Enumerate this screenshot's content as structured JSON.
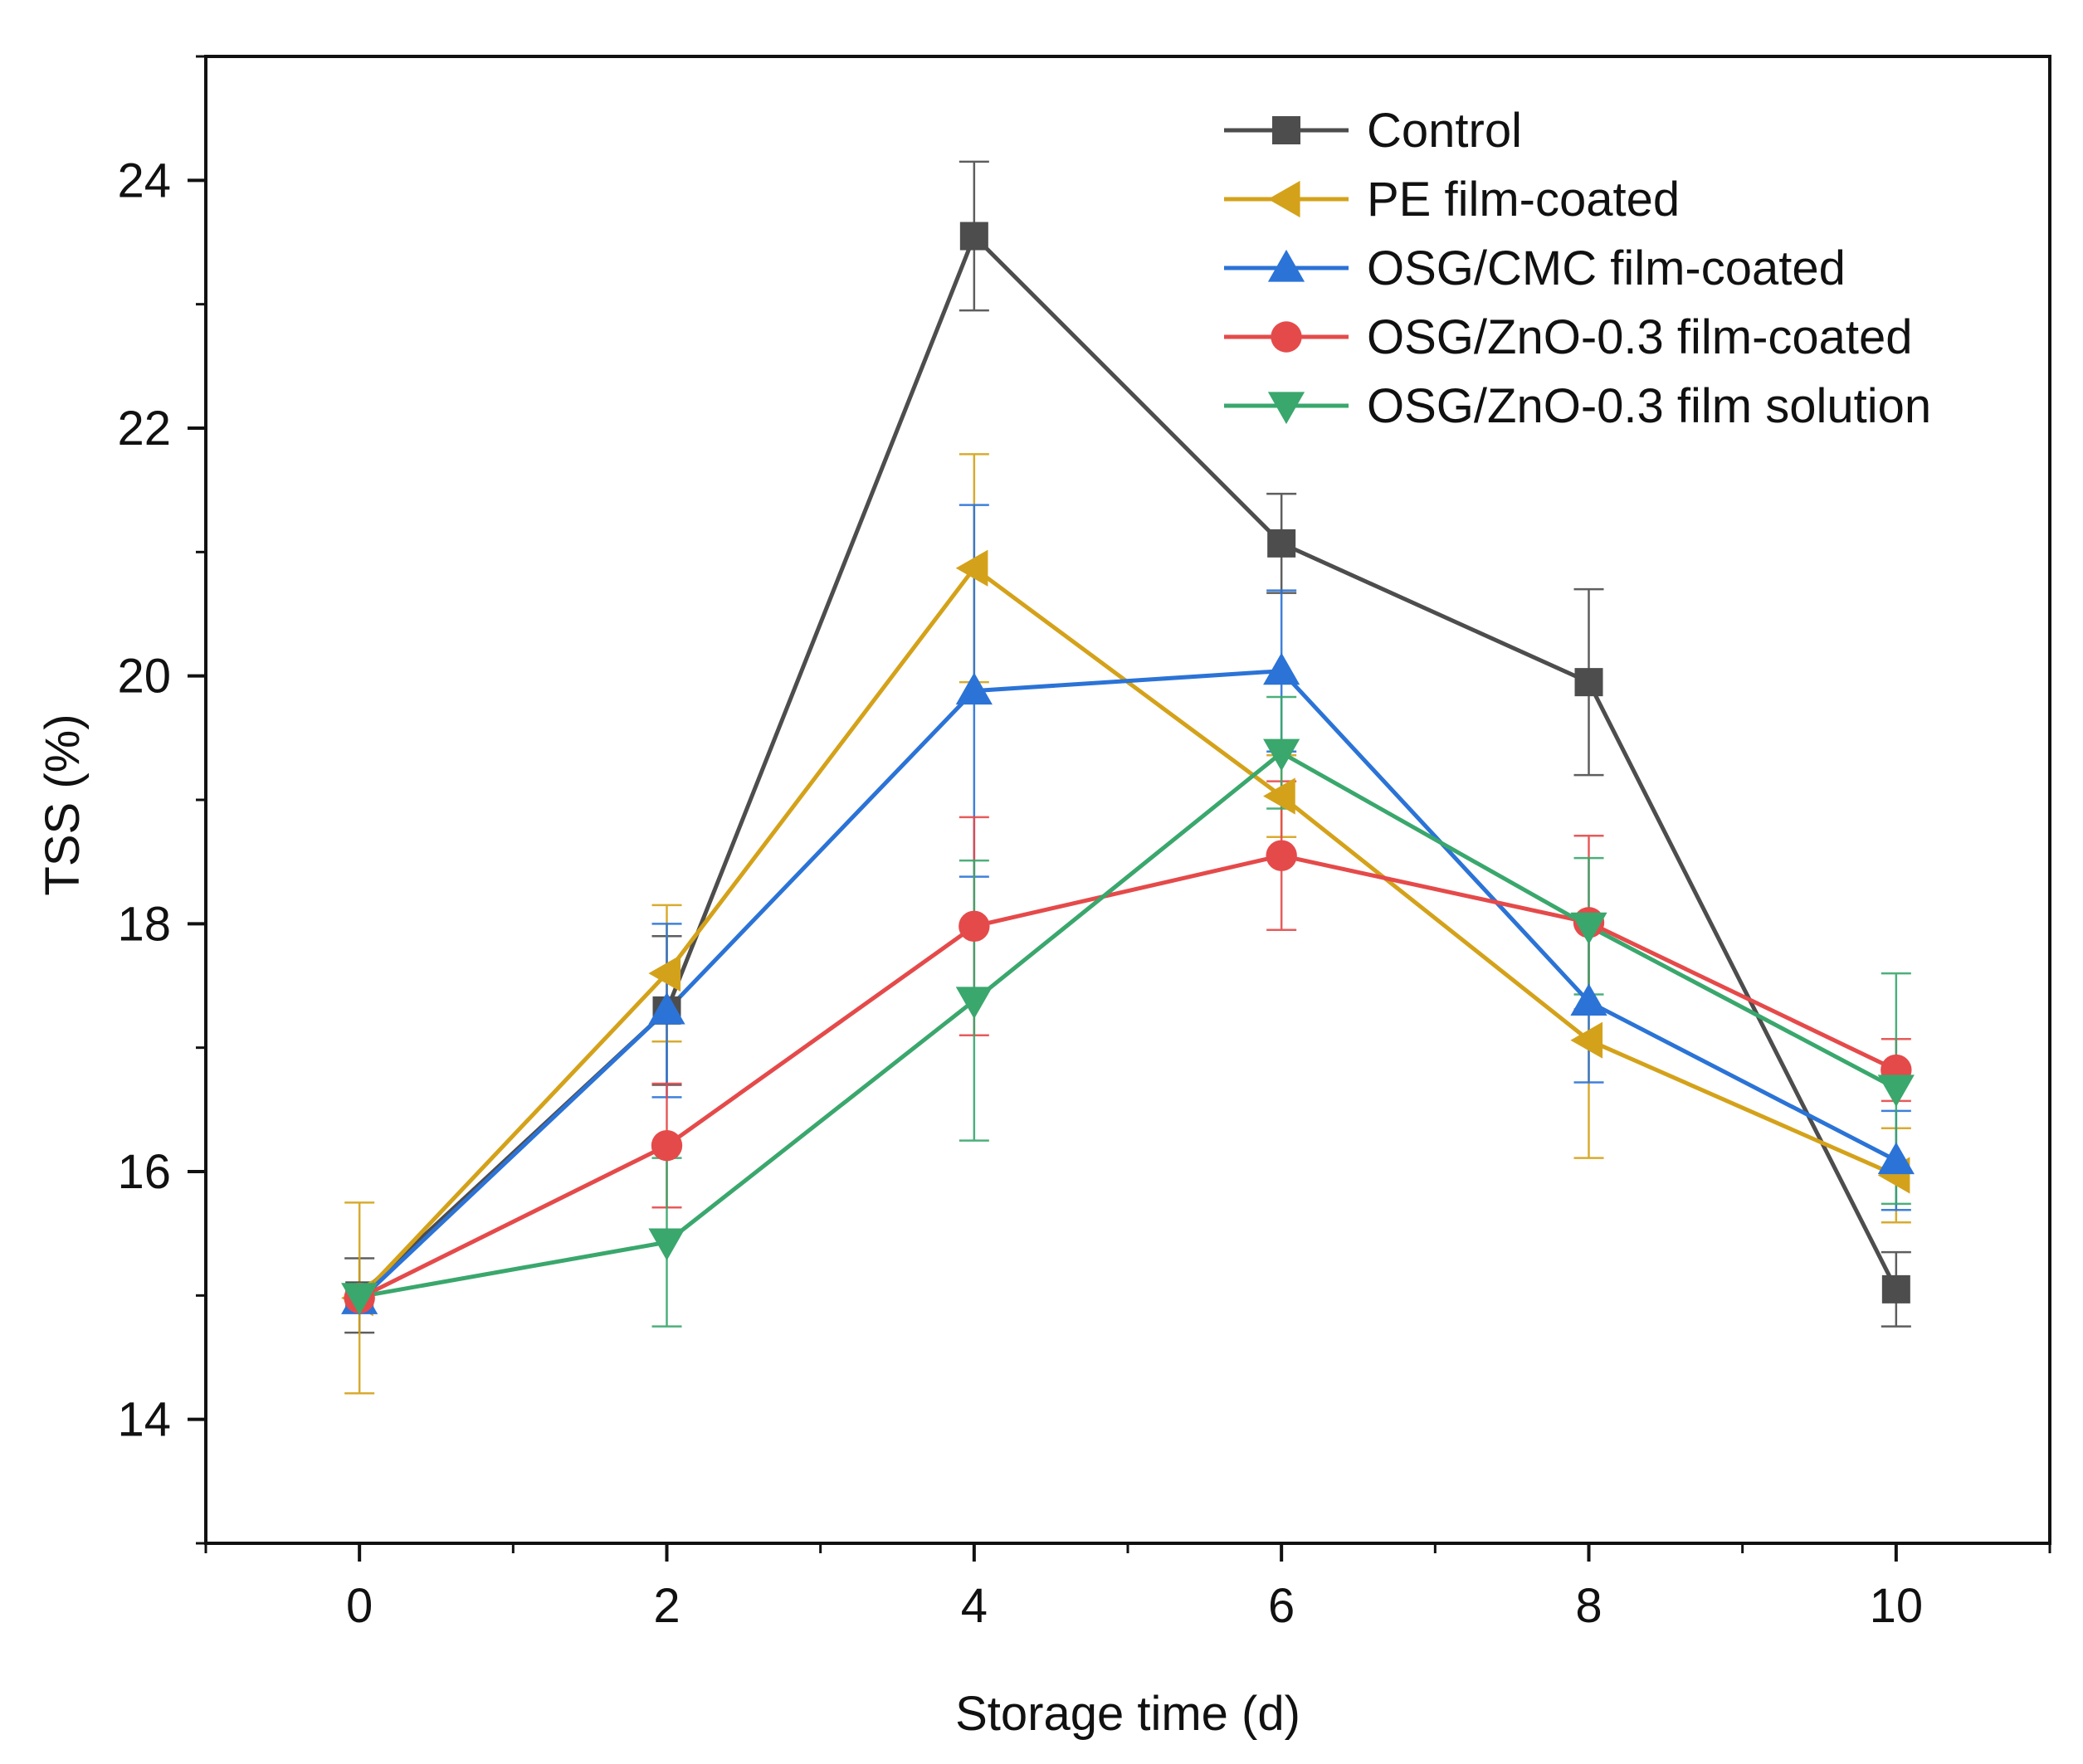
{
  "chart_data": {
    "type": "line",
    "title": "",
    "xlabel": "Storage time (d)",
    "ylabel": "TSS (%)",
    "xlim": [
      -1,
      11
    ],
    "ylim": [
      13,
      25
    ],
    "xticks": [
      0,
      2,
      4,
      6,
      8,
      10
    ],
    "yticks": [
      14,
      16,
      18,
      20,
      22,
      24
    ],
    "grid": false,
    "legend_position": "top-right",
    "x": [
      0,
      2,
      4,
      6,
      8,
      10
    ],
    "series": [
      {
        "name": "Control",
        "color": "#4d4d4d",
        "marker": "square",
        "values": [
          15.0,
          17.3,
          23.55,
          21.07,
          19.95,
          15.05
        ],
        "errors": [
          0.3,
          0.6,
          0.6,
          0.4,
          0.75,
          0.3
        ]
      },
      {
        "name": "PE film-coated",
        "color": "#d4a21a",
        "marker": "triangle-left",
        "values": [
          14.98,
          17.6,
          20.87,
          19.03,
          17.06,
          15.97
        ],
        "errors": [
          0.77,
          0.55,
          0.92,
          0.33,
          0.95,
          0.38
        ]
      },
      {
        "name": "OSG/CMC film-coated",
        "color": "#2b73d6",
        "marker": "triangle-up",
        "values": [
          14.96,
          17.3,
          19.88,
          20.04,
          17.37,
          16.09
        ],
        "errors": [
          0.1,
          0.7,
          1.5,
          0.65,
          0.65,
          0.4
        ]
      },
      {
        "name": "OSG/ZnO-0.3 film-coated",
        "color": "#e54a4a",
        "marker": "circle",
        "values": [
          14.98,
          16.21,
          17.98,
          18.55,
          18.01,
          16.82
        ],
        "errors": [
          0.1,
          0.5,
          0.88,
          0.6,
          0.7,
          0.25
        ]
      },
      {
        "name": "OSG/ZnO-0.3 film solution",
        "color": "#3aa76d",
        "marker": "triangle-down",
        "values": [
          14.99,
          15.43,
          17.38,
          19.38,
          17.98,
          16.67
        ],
        "errors": [
          0.1,
          0.68,
          1.13,
          0.45,
          0.55,
          0.93
        ]
      }
    ]
  }
}
